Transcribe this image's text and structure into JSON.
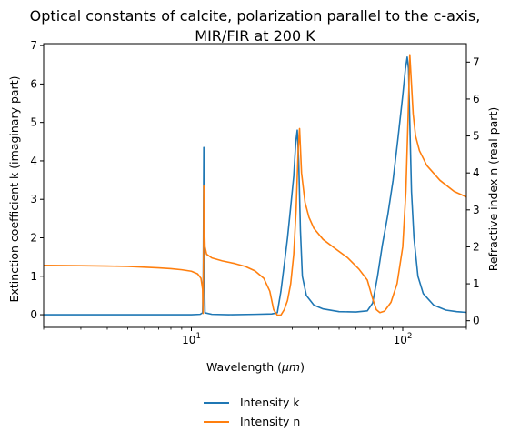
{
  "chart_data": {
    "type": "line",
    "title_line1": "Optical constants of calcite, polarization parallel to the c-axis,",
    "title_line2": "MIR/FIR at 200 K",
    "xlabel_prefix": "Wavelength (",
    "xlabel_unit": "μm",
    "xlabel_suffix": ")",
    "ylabel_left": "Extinction coefficient k (imaginary part)",
    "ylabel_right": "Refractive index n (real part)",
    "x_scale": "log",
    "xlim": [
      2.0,
      200
    ],
    "x_ticks": [
      {
        "value": 10,
        "base": "10",
        "exp": "1"
      },
      {
        "value": 100,
        "base": "10",
        "exp": "2"
      }
    ],
    "ylim_left": [
      -0.33,
      7.05
    ],
    "y_ticks_left": [
      0,
      1,
      2,
      3,
      4,
      5,
      6,
      7
    ],
    "ylim_right": [
      -0.18,
      7.5
    ],
    "y_ticks_right": [
      0,
      1,
      2,
      3,
      4,
      5,
      6,
      7
    ],
    "grid": false,
    "legend_position": "below",
    "series": [
      {
        "name": "Intensity k",
        "axis": "left",
        "color": "#1f77b4",
        "points": [
          [
            2.0,
            0.0
          ],
          [
            5.0,
            0.0
          ],
          [
            10.0,
            0.0
          ],
          [
            11.0,
            0.01
          ],
          [
            11.3,
            0.05
          ],
          [
            11.38,
            1.0
          ],
          [
            11.42,
            3.0
          ],
          [
            11.45,
            4.35
          ],
          [
            11.48,
            3.0
          ],
          [
            11.52,
            1.0
          ],
          [
            11.6,
            0.05
          ],
          [
            12.5,
            0.01
          ],
          [
            15,
            0.0
          ],
          [
            20,
            0.01
          ],
          [
            24,
            0.02
          ],
          [
            25.5,
            0.05
          ],
          [
            26.5,
            0.6
          ],
          [
            27.5,
            1.3
          ],
          [
            28.5,
            2.0
          ],
          [
            29.5,
            2.8
          ],
          [
            30.5,
            3.6
          ],
          [
            31.2,
            4.5
          ],
          [
            31.7,
            4.8
          ],
          [
            32.2,
            4.0
          ],
          [
            32.8,
            2.2
          ],
          [
            33.5,
            1.0
          ],
          [
            35,
            0.5
          ],
          [
            38,
            0.25
          ],
          [
            42,
            0.15
          ],
          [
            50,
            0.08
          ],
          [
            60,
            0.07
          ],
          [
            68,
            0.1
          ],
          [
            72,
            0.3
          ],
          [
            76,
            1.0
          ],
          [
            80,
            1.8
          ],
          [
            85,
            2.6
          ],
          [
            90,
            3.5
          ],
          [
            95,
            4.6
          ],
          [
            100,
            5.7
          ],
          [
            103,
            6.4
          ],
          [
            105,
            6.7
          ],
          [
            106.5,
            6.4
          ],
          [
            108,
            5.0
          ],
          [
            110,
            3.2
          ],
          [
            113,
            2.0
          ],
          [
            118,
            1.0
          ],
          [
            125,
            0.55
          ],
          [
            140,
            0.25
          ],
          [
            160,
            0.12
          ],
          [
            180,
            0.08
          ],
          [
            200,
            0.06
          ]
        ]
      },
      {
        "name": "Intensity n",
        "axis": "right",
        "color": "#ff7f0e",
        "points": [
          [
            2.0,
            1.5
          ],
          [
            3.0,
            1.49
          ],
          [
            4.0,
            1.48
          ],
          [
            5.0,
            1.47
          ],
          [
            6.0,
            1.45
          ],
          [
            7.0,
            1.43
          ],
          [
            8.0,
            1.41
          ],
          [
            9.0,
            1.38
          ],
          [
            10.0,
            1.34
          ],
          [
            10.7,
            1.27
          ],
          [
            11.1,
            1.15
          ],
          [
            11.3,
            0.85
          ],
          [
            11.36,
            0.2
          ],
          [
            11.42,
            2.0
          ],
          [
            11.45,
            3.65
          ],
          [
            11.5,
            2.8
          ],
          [
            11.6,
            2.0
          ],
          [
            11.8,
            1.8
          ],
          [
            12.5,
            1.7
          ],
          [
            14,
            1.62
          ],
          [
            16,
            1.55
          ],
          [
            18,
            1.47
          ],
          [
            20,
            1.35
          ],
          [
            22,
            1.15
          ],
          [
            23.5,
            0.8
          ],
          [
            24.5,
            0.3
          ],
          [
            25.5,
            0.15
          ],
          [
            26.5,
            0.15
          ],
          [
            27.5,
            0.3
          ],
          [
            28.5,
            0.55
          ],
          [
            29.5,
            1.0
          ],
          [
            30.5,
            1.8
          ],
          [
            31.3,
            3.0
          ],
          [
            32.0,
            4.6
          ],
          [
            32.5,
            5.2
          ],
          [
            33.2,
            4.0
          ],
          [
            34.5,
            3.2
          ],
          [
            36,
            2.8
          ],
          [
            38,
            2.5
          ],
          [
            42,
            2.2
          ],
          [
            48,
            1.95
          ],
          [
            55,
            1.7
          ],
          [
            62,
            1.4
          ],
          [
            68,
            1.1
          ],
          [
            72,
            0.6
          ],
          [
            75,
            0.3
          ],
          [
            78,
            0.22
          ],
          [
            82,
            0.26
          ],
          [
            88,
            0.5
          ],
          [
            94,
            1.0
          ],
          [
            100,
            2.0
          ],
          [
            103.5,
            3.5
          ],
          [
            106,
            5.5
          ],
          [
            108,
            7.2
          ],
          [
            109.5,
            6.6
          ],
          [
            112,
            5.6
          ],
          [
            115,
            5.0
          ],
          [
            120,
            4.6
          ],
          [
            130,
            4.2
          ],
          [
            150,
            3.8
          ],
          [
            175,
            3.5
          ],
          [
            200,
            3.35
          ]
        ]
      }
    ]
  }
}
